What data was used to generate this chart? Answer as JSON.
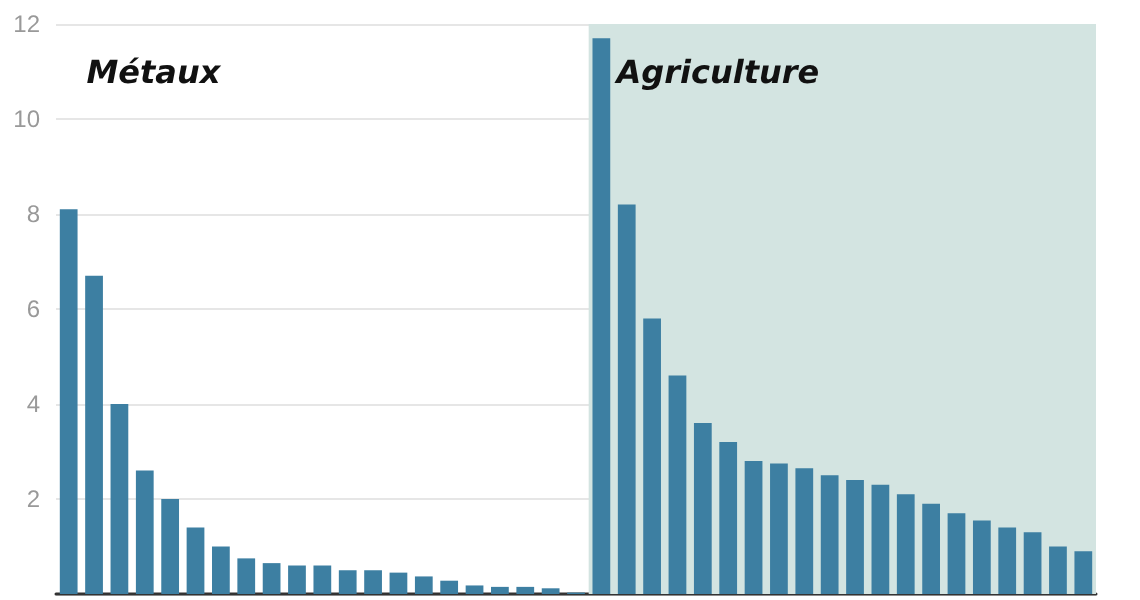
{
  "chart_data": {
    "type": "bar",
    "annotations": [
      "Métaux",
      "Agriculture"
    ],
    "categories": [
      null,
      null,
      null,
      null,
      null,
      null,
      null,
      null,
      null,
      null,
      null,
      null,
      null,
      null,
      null,
      null,
      null,
      null,
      null,
      null,
      null,
      null,
      null,
      null,
      null,
      null,
      null,
      null,
      null,
      null,
      null,
      null,
      null,
      null,
      null,
      null,
      null,
      null,
      null,
      null,
      null
    ],
    "series": [
      {
        "color": "#3d7fa2",
        "values": [
          8.1,
          6.7,
          4.0,
          2.6,
          2.0,
          1.4,
          1.0,
          0.75,
          0.65,
          0.6,
          0.6,
          0.5,
          0.5,
          0.45,
          0.37,
          0.28,
          0.18,
          0.15,
          0.15,
          0.12,
          0.03,
          null,
          null,
          null,
          null,
          null,
          null,
          null,
          null,
          null,
          null,
          null,
          null,
          null,
          null,
          null,
          null,
          null,
          null,
          null,
          null
        ]
      },
      {
        "color": "#3d7fa2",
        "values": [
          null,
          null,
          null,
          null,
          null,
          null,
          null,
          null,
          null,
          null,
          null,
          null,
          null,
          null,
          null,
          null,
          null,
          null,
          null,
          null,
          null,
          11.7,
          8.2,
          5.8,
          4.6,
          3.6,
          3.2,
          2.8,
          2.75,
          2.65,
          2.5,
          2.4,
          2.3,
          2.1,
          1.9,
          1.7,
          1.55,
          1.4,
          1.3,
          1.0,
          0.9
        ]
      }
    ],
    "ylim": [
      0,
      12
    ],
    "yticks": [
      {
        "value": 0,
        "label": null
      },
      2,
      4,
      6,
      8,
      10,
      12
    ],
    "grid": "y",
    "tick_labels": "y"
  }
}
